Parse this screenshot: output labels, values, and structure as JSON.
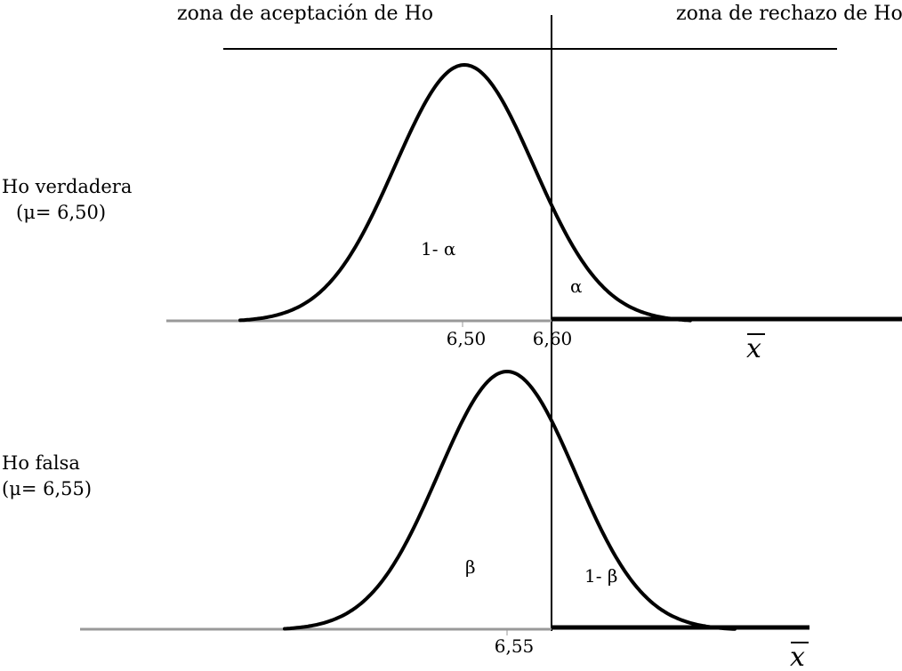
{
  "zones": {
    "acceptance": "zona de aceptación de Ho",
    "rejection": "zona de rechazo de Ho"
  },
  "panels": [
    {
      "hypothesis_label": "Ho verdadera",
      "mu_label": "(μ= 6,50)",
      "mean_tick": "6,50",
      "critical_tick": "6,60",
      "left_area_label": "1- α",
      "right_area_label": "α",
      "axis_label": "x"
    },
    {
      "hypothesis_label": "Ho falsa",
      "mu_label": "(μ= 6,55)",
      "mean_tick": "6,55",
      "left_area_label": "β",
      "right_area_label": "1- β",
      "axis_label": "x"
    }
  ],
  "colors": {
    "curve": "#000000",
    "baseline": "#999999",
    "reject_region": "#000000"
  }
}
